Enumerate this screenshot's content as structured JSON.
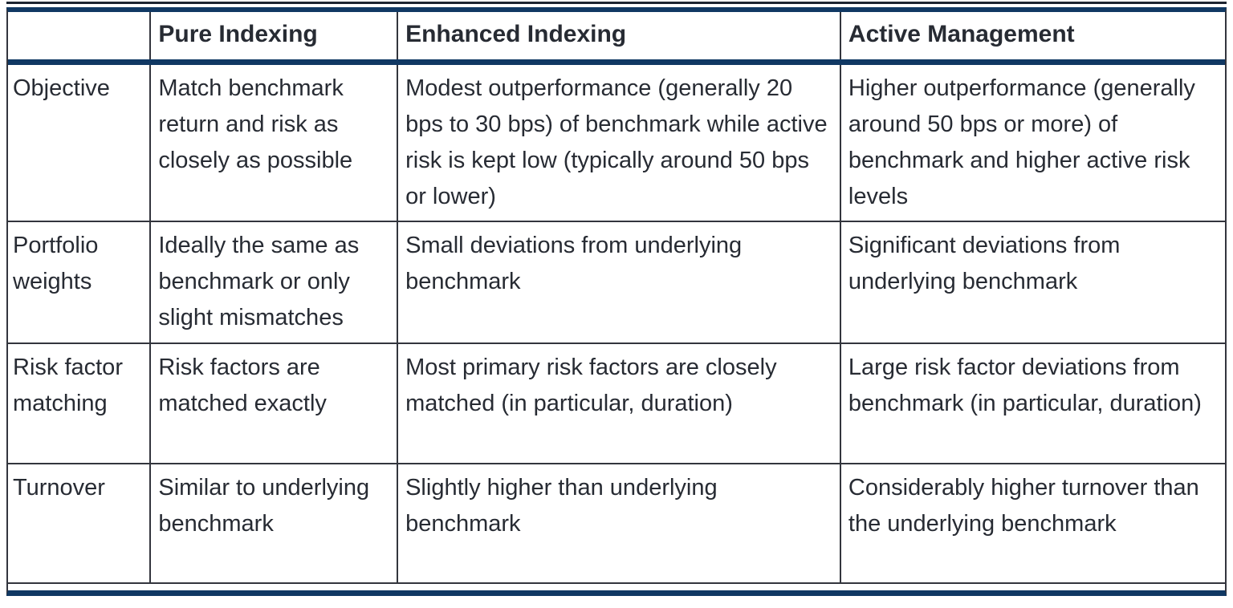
{
  "table": {
    "headers": [
      "",
      "Pure Indexing",
      "Enhanced Indexing",
      "Active Management"
    ],
    "rows": [
      {
        "label": "Objective",
        "pure": "Match benchmark return and risk as closely as possible",
        "enhanced": "Modest outperformance (generally 20 bps to 30 bps) of benchmark while active risk is kept low (typically around 50 bps or lower)",
        "active": "Higher outperformance (generally around 50 bps or more) of benchmark and higher active risk levels"
      },
      {
        "label": "Portfolio weights",
        "pure": "Ideally the same as benchmark or only slight mismatches",
        "enhanced": "Small deviations from underlying benchmark",
        "active": "Significant deviations from underlying benchmark"
      },
      {
        "label": "Risk factor matching",
        "pure": "Risk factors are matched exactly",
        "enhanced": "Most primary risk factors are closely matched (in particular, duration)",
        "active": "Large risk factor deviations from benchmark (in particular, duration)"
      },
      {
        "label": "Turnover",
        "pure": "Similar to underlying benchmark",
        "enhanced": "Slightly higher than underlying benchmark",
        "active": "Considerably higher turnover than the underlying benchmark"
      }
    ]
  },
  "colors": {
    "accent_navy": "#103863",
    "thin_border": "#33353D",
    "text": "#272B33",
    "background": "#FFFFFF"
  }
}
